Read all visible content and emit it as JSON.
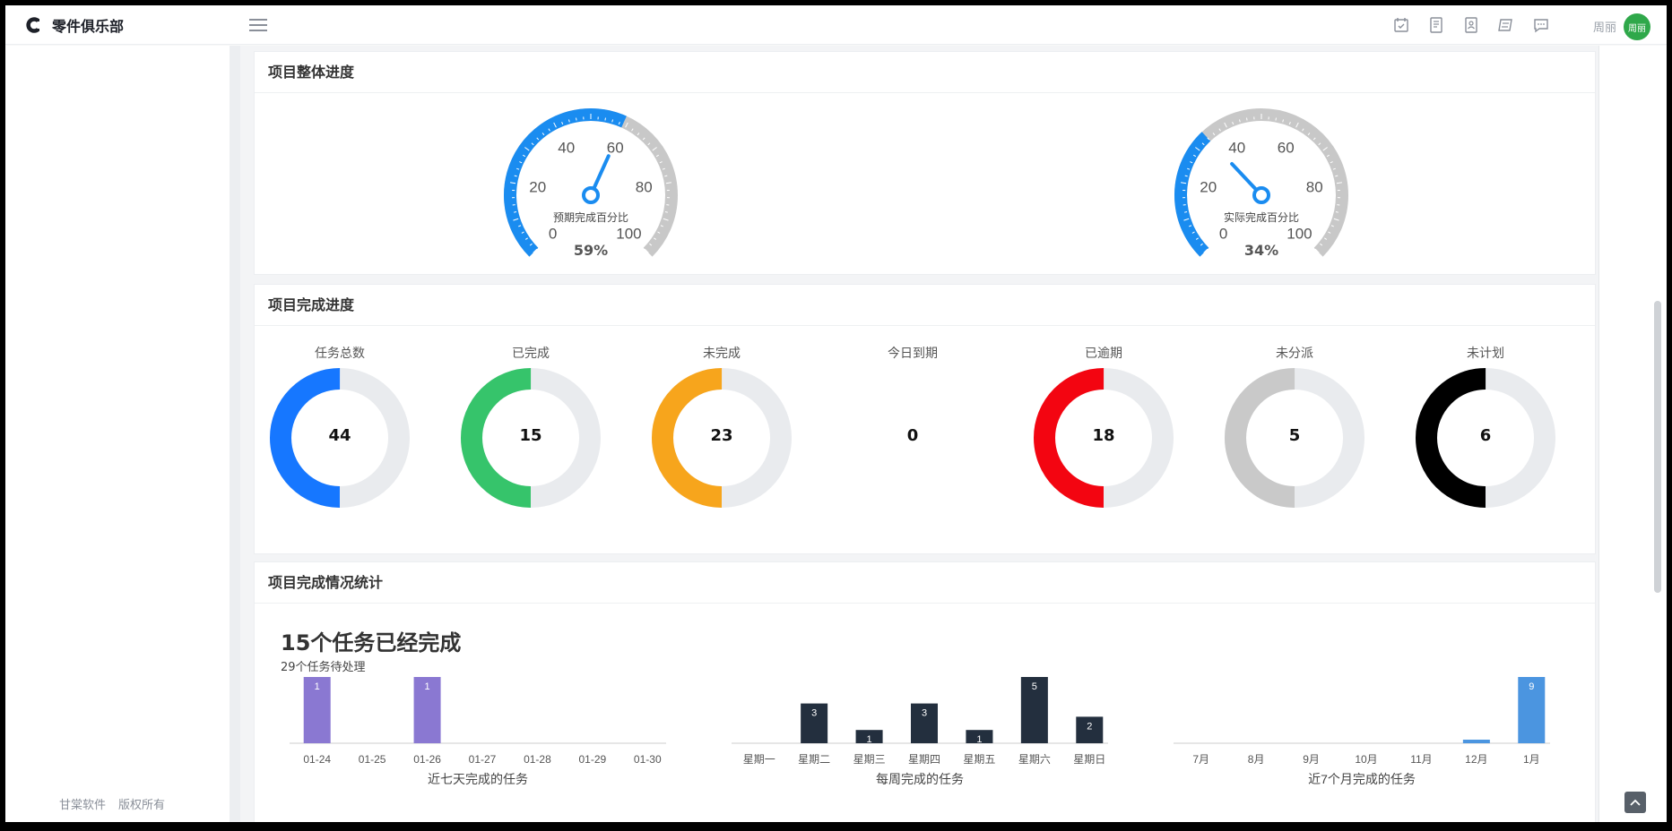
{
  "app": {
    "title": "零件俱乐部",
    "user_name": "周丽",
    "avatar_text": "周丽"
  },
  "sidebar": {
    "footer": [
      "甘棠软件",
      "版权所有"
    ]
  },
  "progress_card": {
    "title": "项目整体进度",
    "gauges": [
      {
        "label": "预期完成百分比",
        "value": 59,
        "display": "59%"
      },
      {
        "label": "实际完成百分比",
        "value": 34,
        "display": "34%"
      }
    ],
    "ticks": [
      "0",
      "20",
      "40",
      "60",
      "80",
      "100"
    ]
  },
  "complete_card": {
    "title": "项目完成进度",
    "items": [
      {
        "label": "任务总数",
        "value": "44",
        "color": "#1677ff",
        "fraction": 0.5
      },
      {
        "label": "已完成",
        "value": "15",
        "color": "#36c46b",
        "fraction": 0.5
      },
      {
        "label": "未完成",
        "value": "23",
        "color": "#f7a51c",
        "fraction": 0.5
      },
      {
        "label": "今日到期",
        "value": "0",
        "color": "#ffffff",
        "fraction": 0
      },
      {
        "label": "已逾期",
        "value": "18",
        "color": "#f30511",
        "fraction": 0.5
      },
      {
        "label": "未分派",
        "value": "5",
        "color": "#c9c9c9",
        "fraction": 0.5
      },
      {
        "label": "未计划",
        "value": "6",
        "color": "#000000",
        "fraction": 0.5
      }
    ]
  },
  "stats_card": {
    "title": "项目完成情况统计",
    "headline": "15个任务已经完成",
    "subline": "29个任务待处理",
    "charts": [
      {
        "caption": "近七天完成的任务"
      },
      {
        "caption": "每周完成的任务"
      },
      {
        "caption": "近7个月完成的任务"
      }
    ]
  },
  "chart_data": [
    {
      "type": "bar",
      "title": "近七天完成的任务",
      "categories": [
        "01-24",
        "01-25",
        "01-26",
        "01-27",
        "01-28",
        "01-29",
        "01-30"
      ],
      "values": [
        1,
        0,
        1,
        0,
        0,
        0,
        0
      ],
      "color": "#8a78d2"
    },
    {
      "type": "bar",
      "title": "每周完成的任务",
      "categories": [
        "星期一",
        "星期二",
        "星期三",
        "星期四",
        "星期五",
        "星期六",
        "星期日"
      ],
      "values": [
        0,
        3,
        1,
        3,
        1,
        5,
        2
      ],
      "color": "#232f3e"
    },
    {
      "type": "bar",
      "title": "近7个月完成的任务",
      "categories": [
        "7月",
        "8月",
        "9月",
        "10月",
        "11月",
        "12月",
        "1月"
      ],
      "values": [
        0,
        0,
        0,
        0,
        0,
        0.2,
        9
      ],
      "color": "#4b95e0"
    }
  ],
  "colors": {
    "gauge_fill": "#1a8cf0",
    "gauge_track": "#c8c8c8",
    "donut_track": "#e9ebee"
  }
}
